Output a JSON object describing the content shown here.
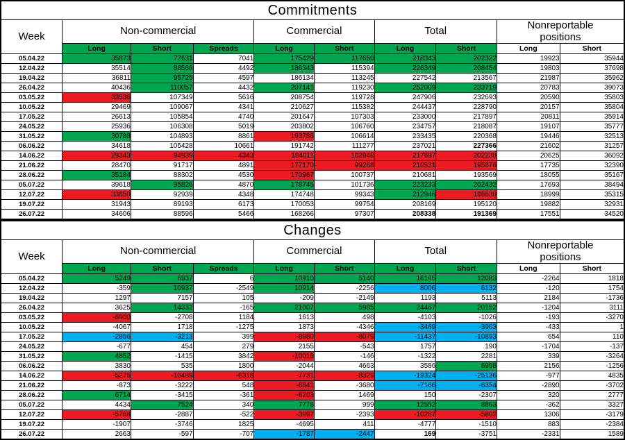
{
  "colors": {
    "green": "#00a651",
    "red": "#ed1c24",
    "cyan": "#00b0f0",
    "border": "#000000",
    "background": "#ffffff"
  },
  "chart_data": [
    {
      "type": "table",
      "title": "Commitments",
      "week_header": "Week",
      "groups": [
        "Non-commercial",
        "Commercial",
        "Total",
        "Nonreportable positions"
      ],
      "subheaders": [
        "Long",
        "Short",
        "Spreads",
        "Long",
        "Short",
        "Long",
        "Short",
        "Long",
        "Short"
      ],
      "rows": [
        {
          "w": "05.04.22",
          "v": [
            "35873",
            "77631",
            "7041",
            "175429",
            "117650",
            "218343",
            "202322",
            "19923",
            "35944"
          ],
          "s": [
            "g",
            "g",
            "",
            "g",
            "g",
            "g",
            "g",
            "",
            ""
          ]
        },
        {
          "w": "12.04.22",
          "v": [
            "35514",
            "88568",
            "4492",
            "186343",
            "115394",
            "226349",
            "208454",
            "19803",
            "37698"
          ],
          "s": [
            "",
            "g",
            "",
            "g",
            "",
            "g",
            "g",
            "",
            ""
          ]
        },
        {
          "w": "19.04.22",
          "v": [
            "36811",
            "95725",
            "4597",
            "186134",
            "113245",
            "227542",
            "213567",
            "21987",
            "35962"
          ],
          "s": [
            "",
            "g",
            "",
            "",
            "",
            "",
            "",
            "",
            ""
          ]
        },
        {
          "w": "26.04.22",
          "v": [
            "40436",
            "110057",
            "4432",
            "207141",
            "119230",
            "252009",
            "233719",
            "20783",
            "39073"
          ],
          "s": [
            "",
            "g",
            "",
            "g",
            "",
            "g",
            "g",
            "",
            ""
          ]
        },
        {
          "w": "03.05.22",
          "v": [
            "33536",
            "107349",
            "5616",
            "208754",
            "119728",
            "247906",
            "232693",
            "20590",
            "35803"
          ],
          "s": [
            "r",
            "",
            "",
            "",
            "",
            "",
            "",
            "",
            ""
          ]
        },
        {
          "w": "10.05.22",
          "v": [
            "29469",
            "109067",
            "4341",
            "210627",
            "115382",
            "244437",
            "228790",
            "20157",
            "35804"
          ],
          "s": [
            "",
            "",
            "",
            "",
            "",
            "",
            "",
            "",
            ""
          ]
        },
        {
          "w": "17.05.22",
          "v": [
            "26613",
            "105854",
            "4740",
            "201647",
            "107303",
            "233000",
            "217897",
            "20811",
            "35914"
          ],
          "s": [
            "",
            "",
            "",
            "",
            "",
            "",
            "",
            "",
            ""
          ]
        },
        {
          "w": "24.05.22",
          "v": [
            "25936",
            "106308",
            "5019",
            "203802",
            "106760",
            "234757",
            "218087",
            "19107",
            "35777"
          ],
          "s": [
            "",
            "",
            "",
            "",
            "",
            "",
            "",
            "",
            ""
          ]
        },
        {
          "w": "31.05.22",
          "v": [
            "30788",
            "104893",
            "8861",
            "193786",
            "106614",
            "233435",
            "220368",
            "19446",
            "32513"
          ],
          "s": [
            "g",
            "",
            "",
            "r",
            "",
            "",
            "",
            "",
            ""
          ]
        },
        {
          "w": "06.06.22",
          "v": [
            "34618",
            "105428",
            "10661",
            "191742",
            "111277",
            "237021",
            "227366",
            "21602",
            "31257"
          ],
          "s": [
            "",
            "",
            "",
            "",
            "",
            "",
            "b",
            "",
            ""
          ]
        },
        {
          "w": "14.06.22",
          "v": [
            "29343",
            "94939",
            "4343",
            "184011",
            "102948",
            "217697",
            "202230",
            "20625",
            "36092"
          ],
          "s": [
            "r",
            "r",
            "r",
            "r",
            "r",
            "r",
            "r",
            "",
            ""
          ]
        },
        {
          "w": "21.06.22",
          "v": [
            "28470",
            "91717",
            "4891",
            "177170",
            "99268",
            "210531",
            "195876",
            "17735",
            "32390"
          ],
          "s": [
            "",
            "",
            "",
            "r",
            "r",
            "r",
            "r",
            "",
            ""
          ]
        },
        {
          "w": "28.06.22",
          "v": [
            "35184",
            "88302",
            "4530",
            "170967",
            "100737",
            "210681",
            "193569",
            "18055",
            "35167"
          ],
          "s": [
            "g",
            "",
            "",
            "r",
            "",
            "",
            "",
            "",
            ""
          ]
        },
        {
          "w": "05.07.22",
          "v": [
            "39618",
            "95826",
            "4870",
            "178745",
            "101736",
            "223233",
            "202432",
            "17693",
            "38494"
          ],
          "s": [
            "",
            "g",
            "",
            "g",
            "",
            "g",
            "g",
            "",
            ""
          ]
        },
        {
          "w": "12.07.22",
          "v": [
            "33850",
            "92939",
            "4348",
            "174748",
            "99343",
            "212946",
            "196630",
            "18999",
            "35315"
          ],
          "s": [
            "r",
            "",
            "",
            "",
            "",
            "g",
            "r",
            "",
            ""
          ]
        },
        {
          "w": "19.07.22",
          "v": [
            "31943",
            "89193",
            "6173",
            "170053",
            "99754",
            "208169",
            "195120",
            "19882",
            "32931"
          ],
          "s": [
            "",
            "",
            "",
            "",
            "",
            "",
            "",
            "",
            ""
          ]
        },
        {
          "w": "26.07.22",
          "v": [
            "34606",
            "88596",
            "5466",
            "168266",
            "97307",
            "208338",
            "191369",
            "17551",
            "34520"
          ],
          "s": [
            "",
            "",
            "",
            "",
            "",
            "b",
            "b",
            "",
            ""
          ]
        }
      ]
    },
    {
      "type": "table",
      "title": "Changes",
      "week_header": "Week",
      "groups": [
        "Non-commercial",
        "Commercial",
        "Total",
        "Nonreportable positions"
      ],
      "subheaders": [
        "Long",
        "Short",
        "Spreads",
        "Long",
        "Short",
        "Long",
        "Short",
        "Long",
        "Short"
      ],
      "rows": [
        {
          "w": "05.04.22",
          "v": [
            "5249",
            "6937",
            "6",
            "10910",
            "5140",
            "16165",
            "12083",
            "-2264",
            "1818"
          ],
          "s": [
            "g",
            "g",
            "",
            "g",
            "g",
            "g",
            "g",
            "",
            ""
          ]
        },
        {
          "w": "12.04.22",
          "v": [
            "-359",
            "10937",
            "-2549",
            "10914",
            "-2256",
            "8006",
            "6132",
            "-120",
            "1754"
          ],
          "s": [
            "",
            "g",
            "",
            "g",
            "",
            "c",
            "c",
            "",
            ""
          ]
        },
        {
          "w": "19.04.22",
          "v": [
            "1297",
            "7157",
            "105",
            "-209",
            "-2149",
            "1193",
            "5113",
            "2184",
            "-1736"
          ],
          "s": [
            "",
            "",
            "",
            "",
            "",
            "",
            "",
            "",
            ""
          ]
        },
        {
          "w": "26.04.22",
          "v": [
            "3625",
            "14332",
            "-165",
            "21007",
            "5985",
            "24467",
            "20152",
            "-1204",
            "3111"
          ],
          "s": [
            "",
            "g",
            "",
            "g",
            "g",
            "g",
            "g",
            "",
            ""
          ]
        },
        {
          "w": "03.05.22",
          "v": [
            "-6900",
            "-2708",
            "1184",
            "1613",
            "498",
            "-4103",
            "-1026",
            "-193",
            "-3270"
          ],
          "s": [
            "r",
            "",
            "",
            "",
            "",
            "",
            "",
            "",
            ""
          ]
        },
        {
          "w": "10.05.22",
          "v": [
            "-4067",
            "1718",
            "-1275",
            "1873",
            "-4346",
            "-3469",
            "-3903",
            "-433",
            "1"
          ],
          "s": [
            "",
            "",
            "",
            "",
            "",
            "c",
            "c",
            "",
            ""
          ]
        },
        {
          "w": "17.05.22",
          "v": [
            "-2856",
            "-3213",
            "399",
            "-8980",
            "-8079",
            "-11437",
            "-10893",
            "654",
            "110"
          ],
          "s": [
            "c",
            "c",
            "",
            "r",
            "r",
            "c",
            "c",
            "",
            ""
          ]
        },
        {
          "w": "24.05.22",
          "v": [
            "-677",
            "454",
            "279",
            "2155",
            "-543",
            "1757",
            "190",
            "-1704",
            "-137"
          ],
          "s": [
            "",
            "",
            "",
            "",
            "",
            "",
            "",
            "",
            ""
          ]
        },
        {
          "w": "31.05.22",
          "v": [
            "4852",
            "-1415",
            "3842",
            "-10016",
            "-146",
            "-1322",
            "2281",
            "339",
            "-3264"
          ],
          "s": [
            "g",
            "",
            "",
            "r",
            "",
            "",
            "",
            "",
            ""
          ]
        },
        {
          "w": "06.06.22",
          "v": [
            "3830",
            "535",
            "1800",
            "-2044",
            "4663",
            "3586",
            "6998",
            "2156",
            "-1256"
          ],
          "s": [
            "",
            "",
            "",
            "",
            "",
            "",
            "g",
            "",
            ""
          ]
        },
        {
          "w": "14.06.22",
          "v": [
            "-5275",
            "-10489",
            "-6318",
            "-7731",
            "-8329",
            "-19324",
            "-25136",
            "-977",
            "4835"
          ],
          "s": [
            "r",
            "r",
            "r",
            "r",
            "r",
            "c",
            "c",
            "",
            ""
          ]
        },
        {
          "w": "21.06.22",
          "v": [
            "-873",
            "-3222",
            "548",
            "-6841",
            "-3680",
            "-7166",
            "-6354",
            "-2890",
            "-3702"
          ],
          "s": [
            "",
            "",
            "",
            "r",
            "",
            "c",
            "c",
            "",
            ""
          ]
        },
        {
          "w": "28.06.22",
          "v": [
            "6714",
            "-3415",
            "-361",
            "-6203",
            "1469",
            "150",
            "-2307",
            "320",
            "2777"
          ],
          "s": [
            "g",
            "",
            "",
            "r",
            "",
            "",
            "",
            "",
            ""
          ]
        },
        {
          "w": "05.07.22",
          "v": [
            "4434",
            "7524",
            "340",
            "7778",
            "999",
            "12552",
            "8863",
            "-362",
            "3327"
          ],
          "s": [
            "",
            "g",
            "",
            "g",
            "",
            "g",
            "g",
            "",
            ""
          ]
        },
        {
          "w": "12.07.22",
          "v": [
            "-5768",
            "-2887",
            "-522",
            "-3997",
            "-2393",
            "-10287",
            "-5802",
            "1306",
            "-3179"
          ],
          "s": [
            "r",
            "",
            "",
            "r",
            "",
            "r",
            "r",
            "",
            ""
          ]
        },
        {
          "w": "19.07.22",
          "v": [
            "-1907",
            "-3746",
            "1825",
            "-4695",
            "411",
            "-4777",
            "-1510",
            "883",
            "-2384"
          ],
          "s": [
            "",
            "",
            "",
            "",
            "",
            "",
            "",
            "",
            ""
          ]
        },
        {
          "w": "26.07.22",
          "v": [
            "2663",
            "-597",
            "-707",
            "-1787",
            "-2447",
            "169",
            "-3751",
            "-2331",
            "1589"
          ],
          "s": [
            "",
            "",
            "",
            "c",
            "c",
            "b",
            "",
            "",
            ""
          ]
        }
      ]
    }
  ]
}
